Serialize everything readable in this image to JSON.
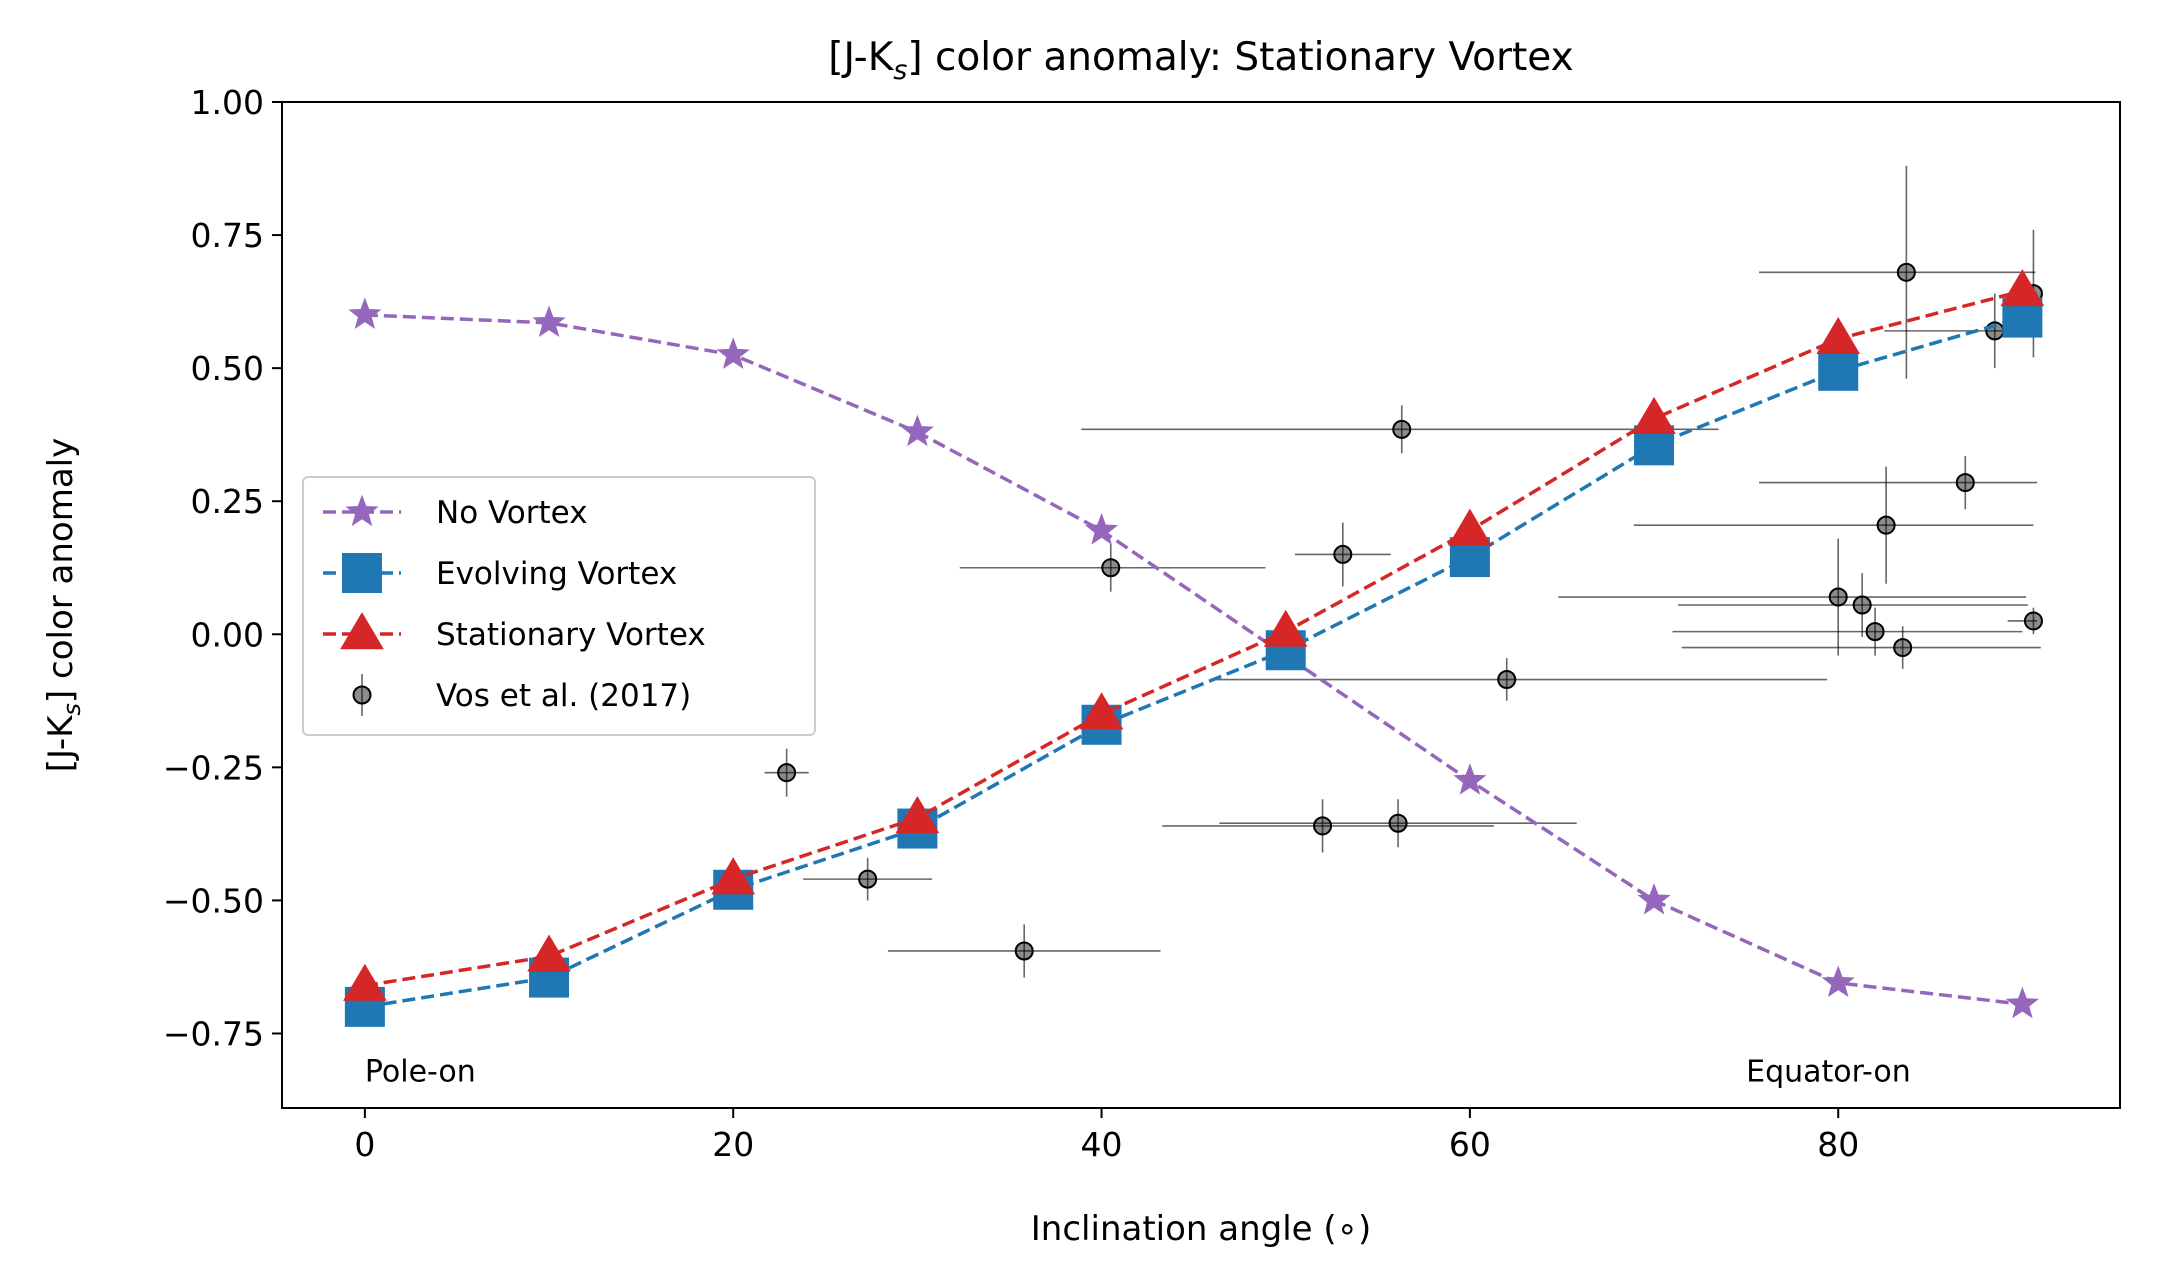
{
  "chart_data": {
    "type": "line",
    "title": "[J-Kₛ] color anomaly: Stationary Vortex",
    "title_parts": {
      "main": "[J-K",
      "sub": "s",
      "rest": "] color anomaly: Stationary Vortex"
    },
    "xlabel": "Inclination angle (∘)",
    "ylabel": "[J-Kₛ] color anomaly",
    "ylabel_parts": {
      "main": "[J-K",
      "sub": "s",
      "rest": "] color anomaly"
    },
    "xlim": [
      -4.5,
      95.3
    ],
    "ylim": [
      -0.89,
      1.0
    ],
    "x_ticks": [
      0,
      20,
      40,
      60,
      80
    ],
    "x_tick_labels": [
      "0",
      "20",
      "40",
      "60",
      "80"
    ],
    "y_ticks": [
      -0.75,
      -0.5,
      -0.25,
      0.0,
      0.25,
      0.5,
      0.75,
      1.0
    ],
    "y_tick_labels": [
      "−0.75",
      "−0.50",
      "−0.25",
      "0.00",
      "0.25",
      "0.50",
      "0.75",
      "1.00"
    ],
    "grid": false,
    "legend_position": "center-left",
    "annotations": [
      {
        "text": "Pole-on",
        "x": 0,
        "y": -0.82,
        "align": "start"
      },
      {
        "text": "Equator-on",
        "x": 75,
        "y": -0.82,
        "align": "start"
      }
    ],
    "series": [
      {
        "name": "No Vortex",
        "color": "#9467bd",
        "marker": "star",
        "line": "dashed",
        "x": [
          0,
          10,
          20,
          30,
          40,
          50,
          60,
          70,
          80,
          90
        ],
        "y": [
          0.6,
          0.585,
          0.525,
          0.38,
          0.195,
          -0.04,
          -0.275,
          -0.5,
          -0.655,
          -0.695
        ]
      },
      {
        "name": "Evolving Vortex",
        "color": "#1f77b4",
        "marker": "square",
        "line": "dashed",
        "x": [
          0,
          10,
          20,
          30,
          40,
          50,
          60,
          70,
          80,
          90
        ],
        "y": [
          -0.7,
          -0.645,
          -0.48,
          -0.365,
          -0.17,
          -0.03,
          0.145,
          0.355,
          0.495,
          0.595
        ]
      },
      {
        "name": "Stationary Vortex",
        "color": "#d62728",
        "marker": "triangle",
        "line": "dashed",
        "x": [
          0,
          10,
          20,
          30,
          40,
          50,
          60,
          70,
          80,
          90
        ],
        "y": [
          -0.66,
          -0.605,
          -0.46,
          -0.345,
          -0.15,
          0.005,
          0.195,
          0.405,
          0.555,
          0.645
        ]
      },
      {
        "name": "Vos et al. (2017)",
        "color": "#000000",
        "marker": "circle",
        "line": "none",
        "points": [
          {
            "x": 22.9,
            "y": -0.26,
            "xerr": [
              1.2,
              1.2
            ],
            "yerr": 0.045
          },
          {
            "x": 27.3,
            "y": -0.46,
            "xerr": [
              3.5,
              3.5
            ],
            "yerr": 0.04
          },
          {
            "x": 35.8,
            "y": -0.595,
            "xerr": [
              7.4,
              7.4
            ],
            "yerr": 0.05
          },
          {
            "x": 40.5,
            "y": 0.125,
            "xerr": [
              8.2,
              8.4
            ],
            "yerr": 0.045
          },
          {
            "x": 52.0,
            "y": -0.36,
            "xerr": [
              8.7,
              9.3
            ],
            "yerr": 0.05
          },
          {
            "x": 53.1,
            "y": 0.15,
            "xerr": [
              2.6,
              2.6
            ],
            "yerr": 0.06
          },
          {
            "x": 56.1,
            "y": -0.355,
            "xerr": [
              9.7,
              9.7
            ],
            "yerr": 0.045
          },
          {
            "x": 56.3,
            "y": 0.385,
            "xerr": [
              17.4,
              17.2
            ],
            "yerr": 0.045
          },
          {
            "x": 62.0,
            "y": -0.085,
            "xerr": [
              15.8,
              17.4
            ],
            "yerr": 0.04
          },
          {
            "x": 80.0,
            "y": 0.07,
            "xerr": [
              15.2,
              10.2
            ],
            "yerr": 0.11
          },
          {
            "x": 81.3,
            "y": 0.055,
            "xerr": [
              10.0,
              9.0
            ],
            "yerr": 0.06
          },
          {
            "x": 82.0,
            "y": 0.005,
            "xerr": [
              11.0,
              8.0
            ],
            "yerr": 0.045
          },
          {
            "x": 82.6,
            "y": 0.205,
            "xerr": [
              13.7,
              8.0
            ],
            "yerr": 0.11
          },
          {
            "x": 83.5,
            "y": -0.025,
            "xerr": [
              12.0,
              7.5
            ],
            "yerr": 0.04
          },
          {
            "x": 83.7,
            "y": 0.68,
            "xerr": [
              8.0,
              7.0
            ],
            "yerr": 0.2
          },
          {
            "x": 86.9,
            "y": 0.285,
            "xerr": [
              11.2,
              3.9
            ],
            "yerr": 0.05
          },
          {
            "x": 88.5,
            "y": 0.57,
            "xerr": [
              6.0,
              2.2
            ],
            "yerr": 0.07
          },
          {
            "x": 90.6,
            "y": 0.64,
            "xerr": [
              1.2,
              0.2
            ],
            "yerr": 0.12
          },
          {
            "x": 90.6,
            "y": 0.025,
            "xerr": [
              1.4,
              0.2
            ],
            "yerr": 0.025
          }
        ]
      }
    ]
  }
}
